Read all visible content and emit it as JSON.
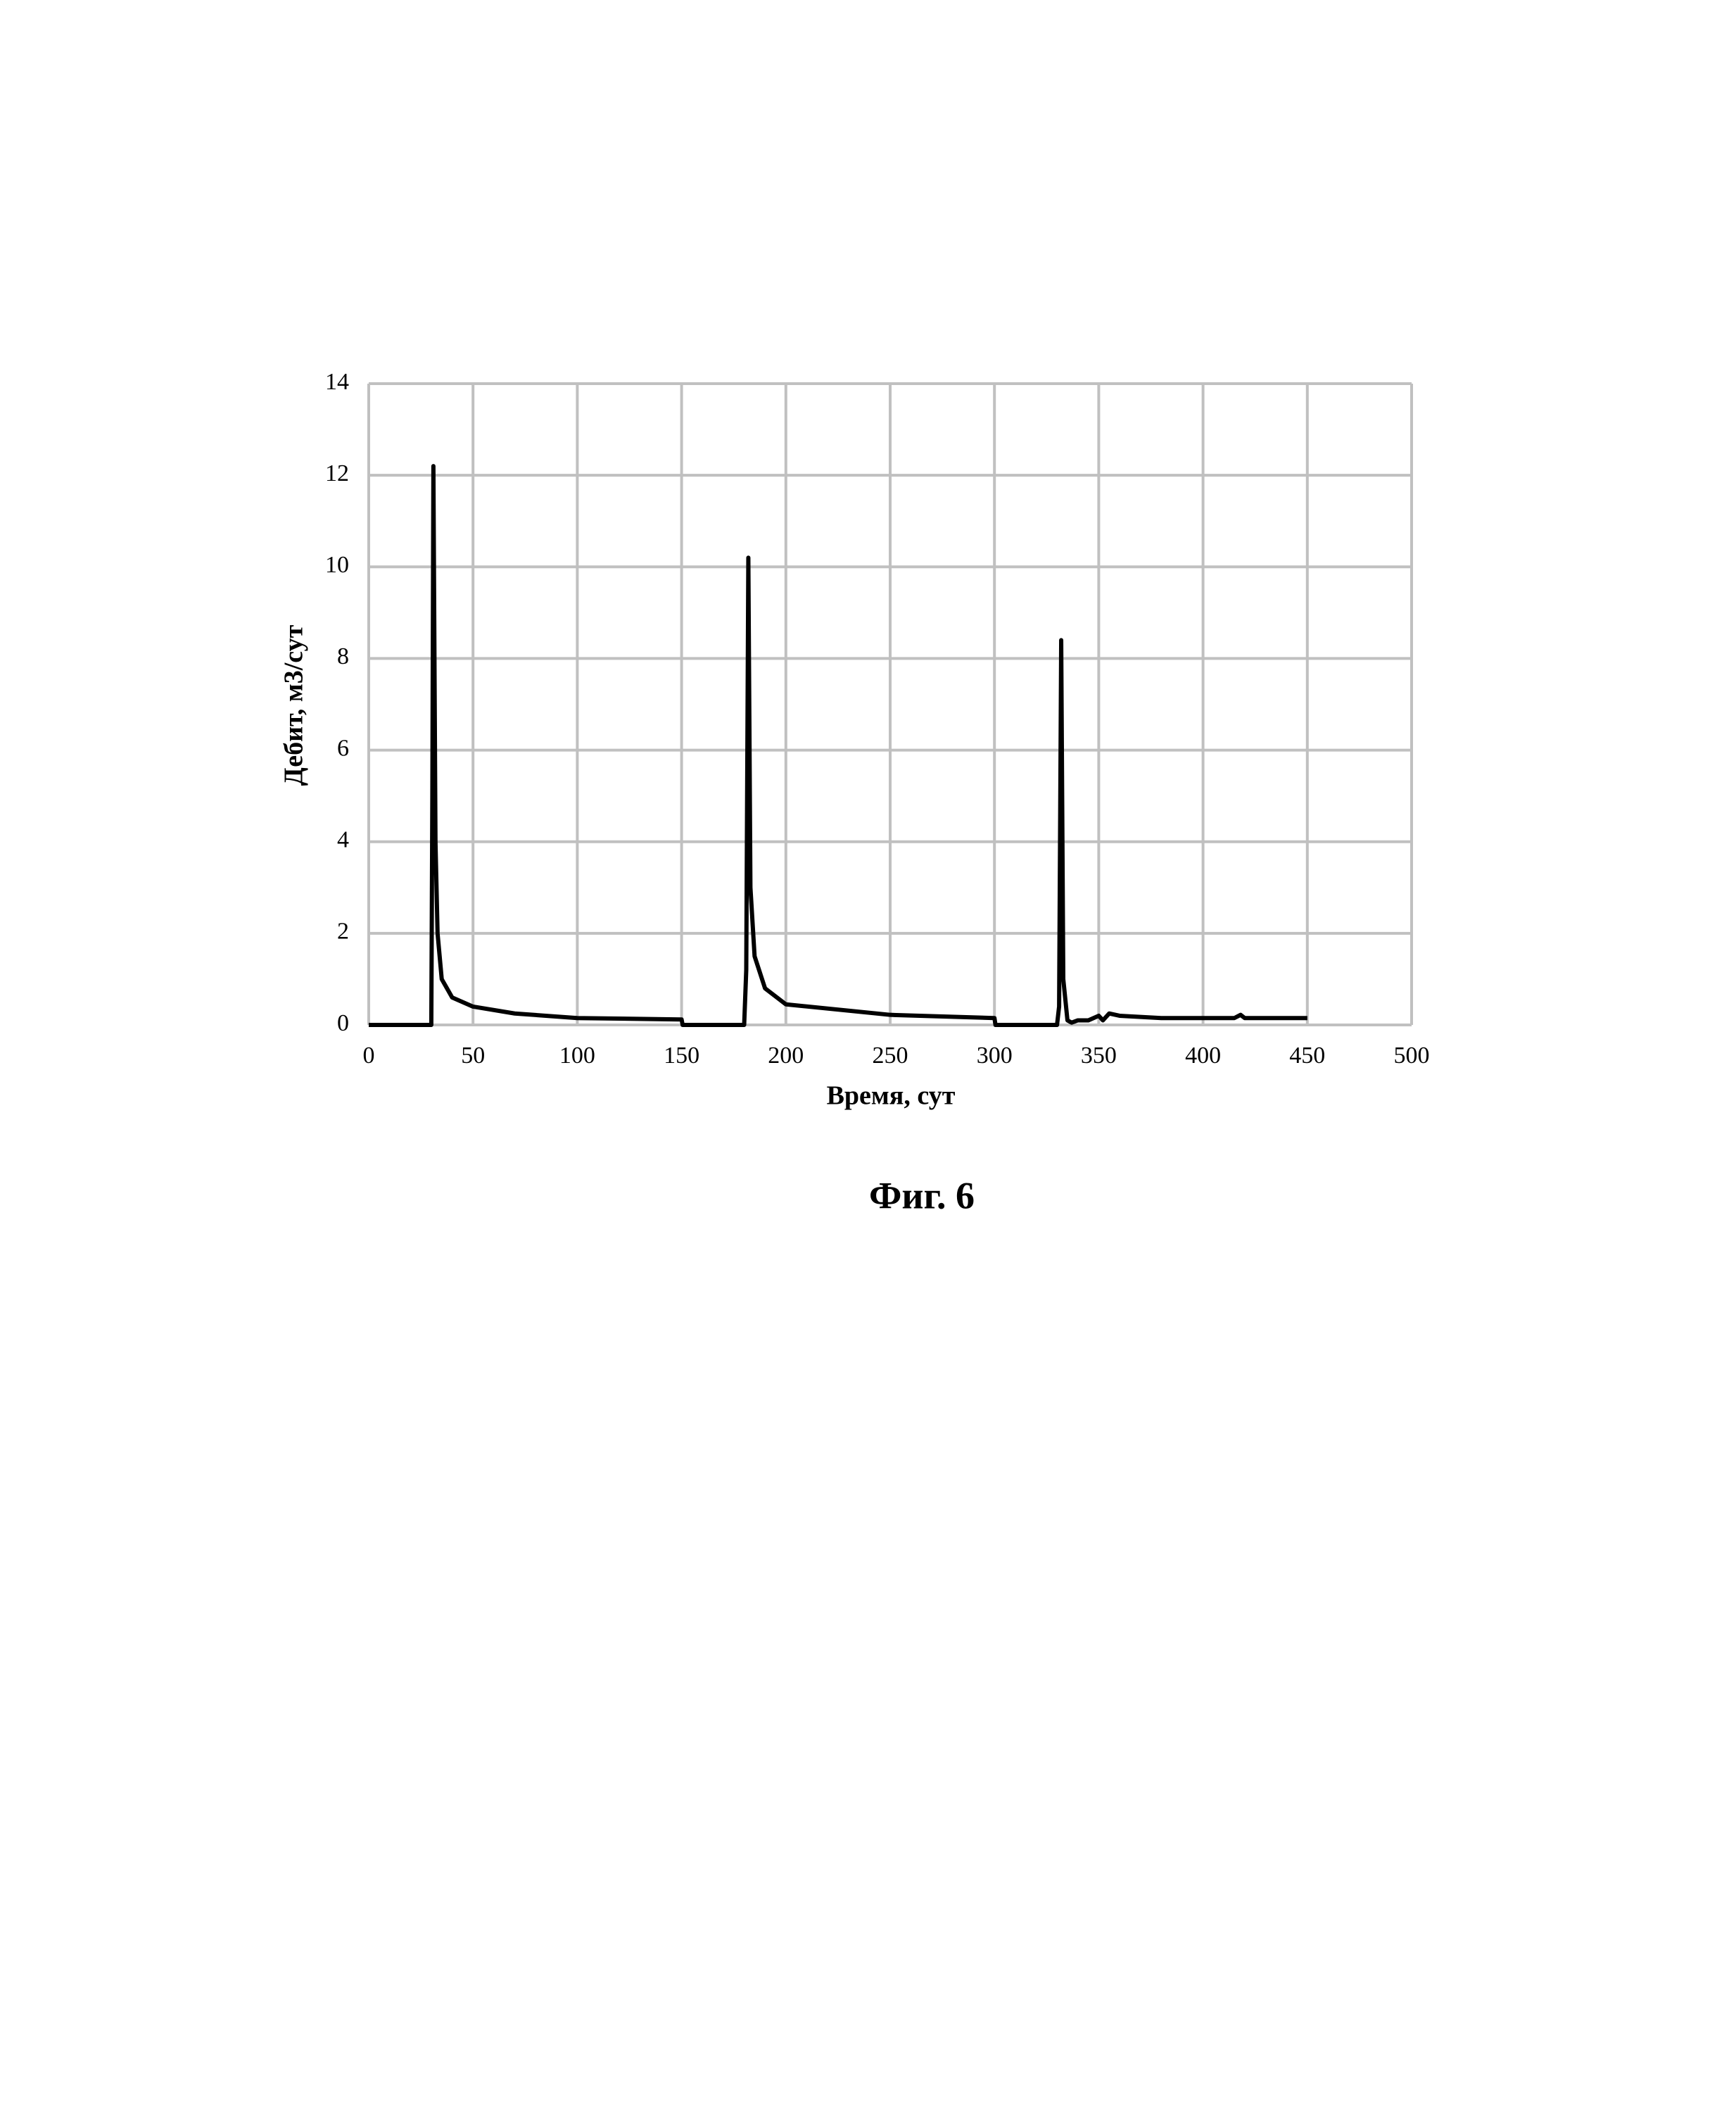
{
  "chart_data": {
    "type": "line",
    "x_label": "Время, сут",
    "y_label": "Дебит, м3/сут",
    "caption": "Фиг. 6",
    "x": [
      0,
      30,
      30.5,
      31,
      32,
      33,
      35,
      40,
      50,
      70,
      100,
      150,
      150.5,
      180,
      181,
      182,
      183,
      185,
      190,
      200,
      250,
      300,
      300.5,
      330,
      331,
      332,
      333,
      335,
      337,
      340,
      345,
      350,
      352,
      355,
      360,
      380,
      415,
      418,
      420,
      450
    ],
    "series": [
      {
        "color": "#000000",
        "values": [
          0,
          0,
          5,
          12.2,
          4,
          2,
          1,
          0.6,
          0.4,
          0.25,
          0.15,
          0.12,
          0,
          0,
          1.2,
          10.2,
          3,
          1.5,
          0.8,
          0.45,
          0.22,
          0.15,
          0,
          0,
          0.4,
          8.4,
          1,
          0.1,
          0.05,
          0.1,
          0.1,
          0.2,
          0.1,
          0.25,
          0.2,
          0.15,
          0.15,
          0.22,
          0.15,
          0.15
        ]
      }
    ],
    "xlim": [
      0,
      500
    ],
    "xticks": [
      0,
      50,
      100,
      150,
      200,
      250,
      300,
      350,
      400,
      450,
      500
    ],
    "ylim": [
      0,
      14
    ],
    "yticks": [
      0,
      2,
      4,
      6,
      8,
      10,
      12,
      14
    ],
    "grid": true
  }
}
